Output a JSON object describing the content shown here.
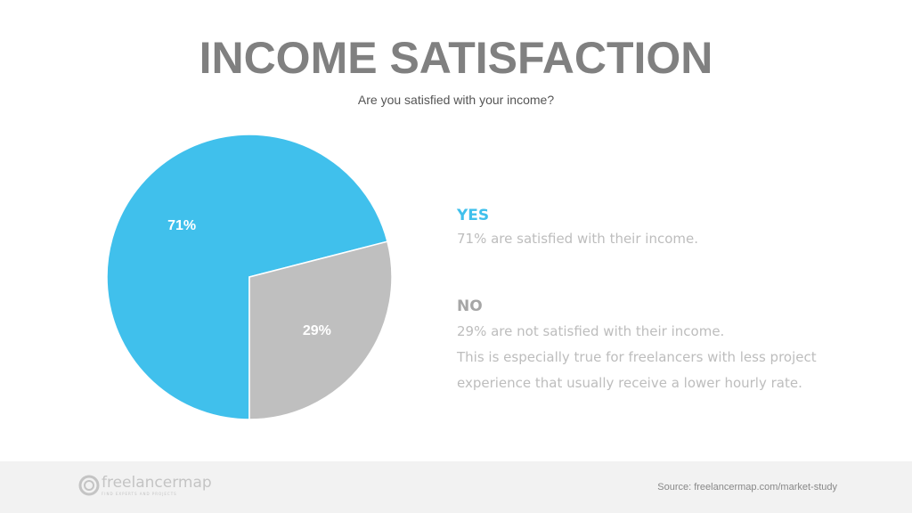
{
  "chart_data": {
    "type": "pie",
    "title": "INCOME SATISFACTION",
    "subtitle": "Are you satisfied with your income?",
    "slices": [
      {
        "name": "YES",
        "value": 71,
        "label": "71%",
        "color": "#40c0ec"
      },
      {
        "name": "NO",
        "value": 29,
        "label": "29%",
        "color": "#bfbfbf"
      }
    ]
  },
  "legend": {
    "yes": {
      "heading": "YES",
      "text": "71% are satisfied with their income.",
      "color": "#40c0ec"
    },
    "no": {
      "heading": "NO",
      "lines": [
        "29% are not satisfied with their income.",
        "This is especially true for freelancers with less project",
        "experience that usually receive a lower hourly rate."
      ],
      "color": "#a6a6a6"
    }
  },
  "footer": {
    "logo": "freelancermap",
    "logo_tagline": "FIND EXPERTS AND PROJECTS",
    "source": "Source: freelancermap.com/market-study"
  }
}
